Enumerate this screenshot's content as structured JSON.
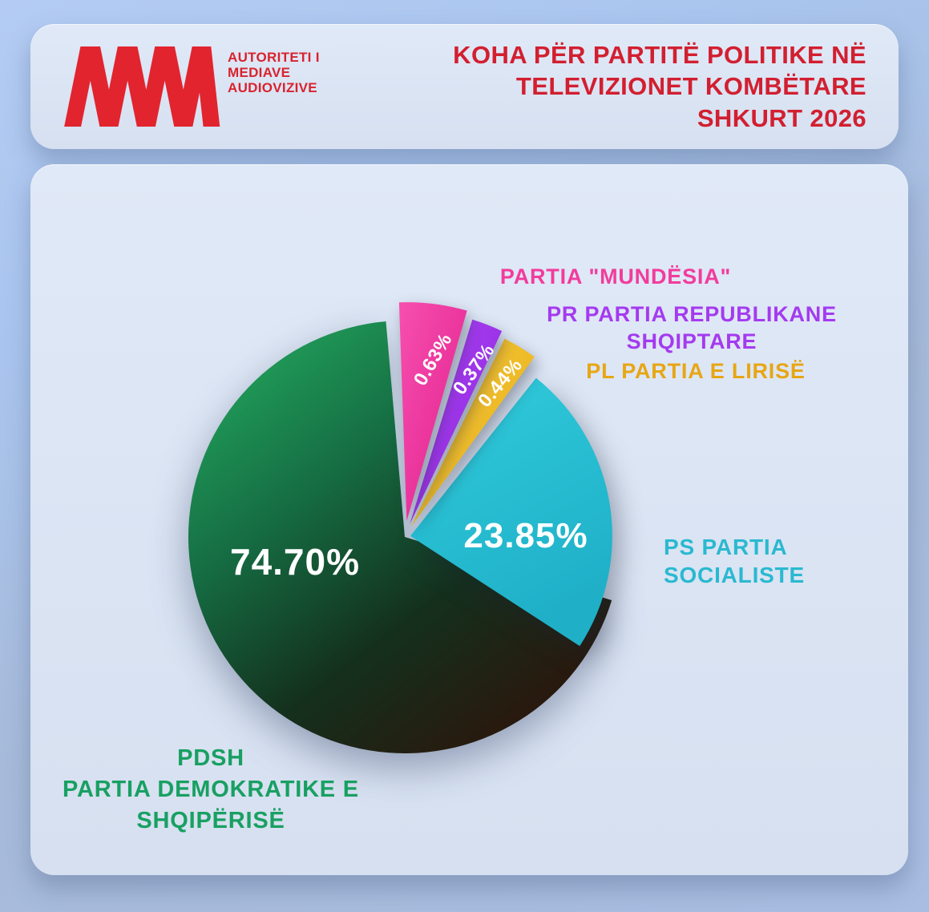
{
  "header": {
    "logo_org_lines": [
      "AUTORITETI I",
      "MEDIAVE",
      "AUDIOVIZIVE"
    ],
    "title_lines": [
      "KOHA PËR PARTITË POLITIKE NË",
      "TELEVIZIONET KOMBËTARE",
      "SHKURT 2026"
    ]
  },
  "colors": {
    "brand_red": "#d8232e",
    "title_red": "#d21f30",
    "card_background": "#dbe5f4",
    "page_background": "#aabfe2"
  },
  "chart_data": {
    "type": "pie",
    "title": "KOHA PËR PARTITË POLITIKE NË TELEVIZIONET KOMBËTARE",
    "period": "SHKURT 2026",
    "unit": "%",
    "legend_position": "around-pie",
    "slices": [
      {
        "code": "PDSH",
        "name": "PARTIA DEMOKRATIKE E SHQIPËRISË",
        "value": 74.7,
        "label": "74.70%",
        "gradient": [
          "#23a85e",
          "#156b42",
          "#14301d",
          "#2e130a"
        ],
        "legend_lines": [
          "PDSH",
          "PARTIA DEMOKRATIKE E",
          "SHQIPËRISË"
        ],
        "legend_color": "#18a062"
      },
      {
        "code": "PS",
        "name": "PARTIA SOCIALISTE",
        "value": 23.85,
        "label": "23.85%",
        "gradient": [
          "#31ccdc",
          "#1fb0c8"
        ],
        "legend_lines": [
          "PS PARTIA",
          "SOCIALISTE"
        ],
        "legend_color": "#2ab9d0"
      },
      {
        "code": "PARTIA \"MUNDËSIA\"",
        "name": "PARTIA \"MUNDËSIA\"",
        "value": 0.63,
        "label": "0.63%",
        "gradient": [
          "#f74fb0",
          "#e01e8b"
        ],
        "legend_lines": [
          "PARTIA \"MUNDËSIA\""
        ],
        "legend_color": "#f23c9d"
      },
      {
        "code": "PR",
        "name": "PARTIA REPUBLIKANE SHQIPTARE",
        "value": 0.37,
        "label": "0.37%",
        "gradient": [
          "#ac4af4",
          "#8e1ede"
        ],
        "legend_lines": [
          "PR PARTIA REPUBLIKANE",
          "SHQIPTARE"
        ],
        "legend_color": "#a43af0"
      },
      {
        "code": "PL",
        "name": "PARTIA E LIRISË",
        "value": 0.44,
        "label": "0.44%",
        "gradient": [
          "#f5ca41",
          "#e8ad12"
        ],
        "legend_lines": [
          "PL PARTIA E LIRISË"
        ],
        "legend_color": "#e7a614"
      }
    ]
  }
}
